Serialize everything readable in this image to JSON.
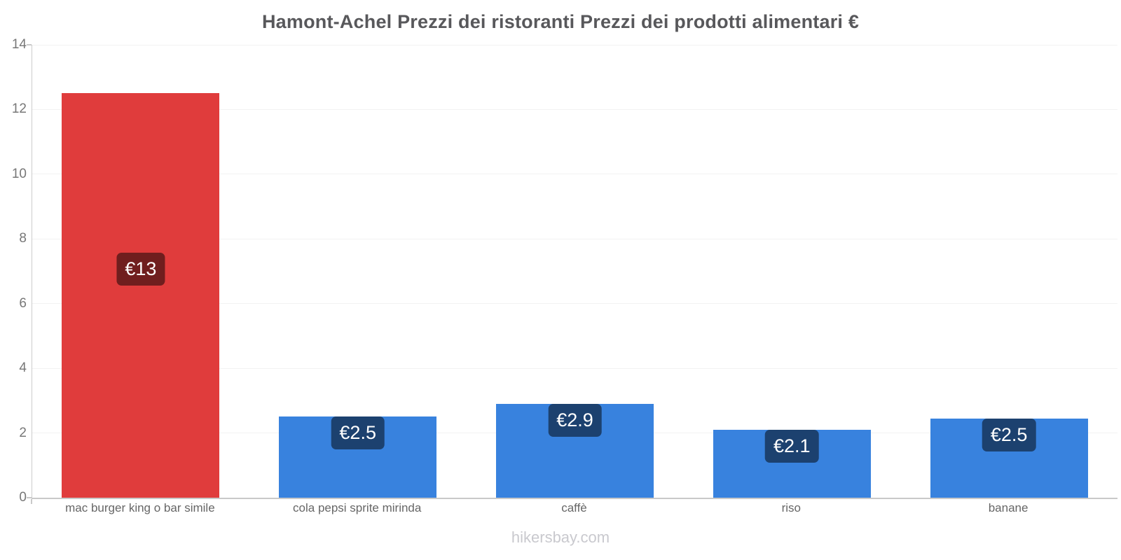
{
  "title": "Hamont-Achel Prezzi dei ristoranti Prezzi dei prodotti alimentari €",
  "footer": {
    "text": "hikersbay.com"
  },
  "colors": {
    "red_bar": "#e03c3c",
    "blue_bar": "#3882de",
    "label_background": "rgba(0,0,0,0.5)",
    "label_text": "#ffffff",
    "axis_line": "#c9c9c9",
    "tick_text": "#777777",
    "category_text": "#666666",
    "title_text": "#58585b",
    "watermark_text": "#c9c9ce",
    "gridline": "#f2f2f2"
  },
  "chart_data": {
    "type": "bar",
    "title": "Hamont-Achel Prezzi dei ristoranti Prezzi dei prodotti alimentari €",
    "categories": [
      "mac burger king o bar simile",
      "cola pepsi sprite mirinda",
      "caffè",
      "riso",
      "banane"
    ],
    "values": [
      12.5,
      2.5,
      2.9,
      2.1,
      2.45
    ],
    "data_labels": [
      "€13",
      "€2.5",
      "€2.9",
      "€2.1",
      "€2.5"
    ],
    "bar_colors": [
      "#e03c3c",
      "#3882de",
      "#3882de",
      "#3882de",
      "#3882de"
    ],
    "xlabel": "",
    "ylabel": "",
    "ylim": [
      0,
      14
    ],
    "yticks": [
      0,
      2,
      4,
      6,
      8,
      10,
      12,
      14
    ],
    "grid": true,
    "legend": "none",
    "currency": "€",
    "watermark": "hikersbay.com"
  }
}
